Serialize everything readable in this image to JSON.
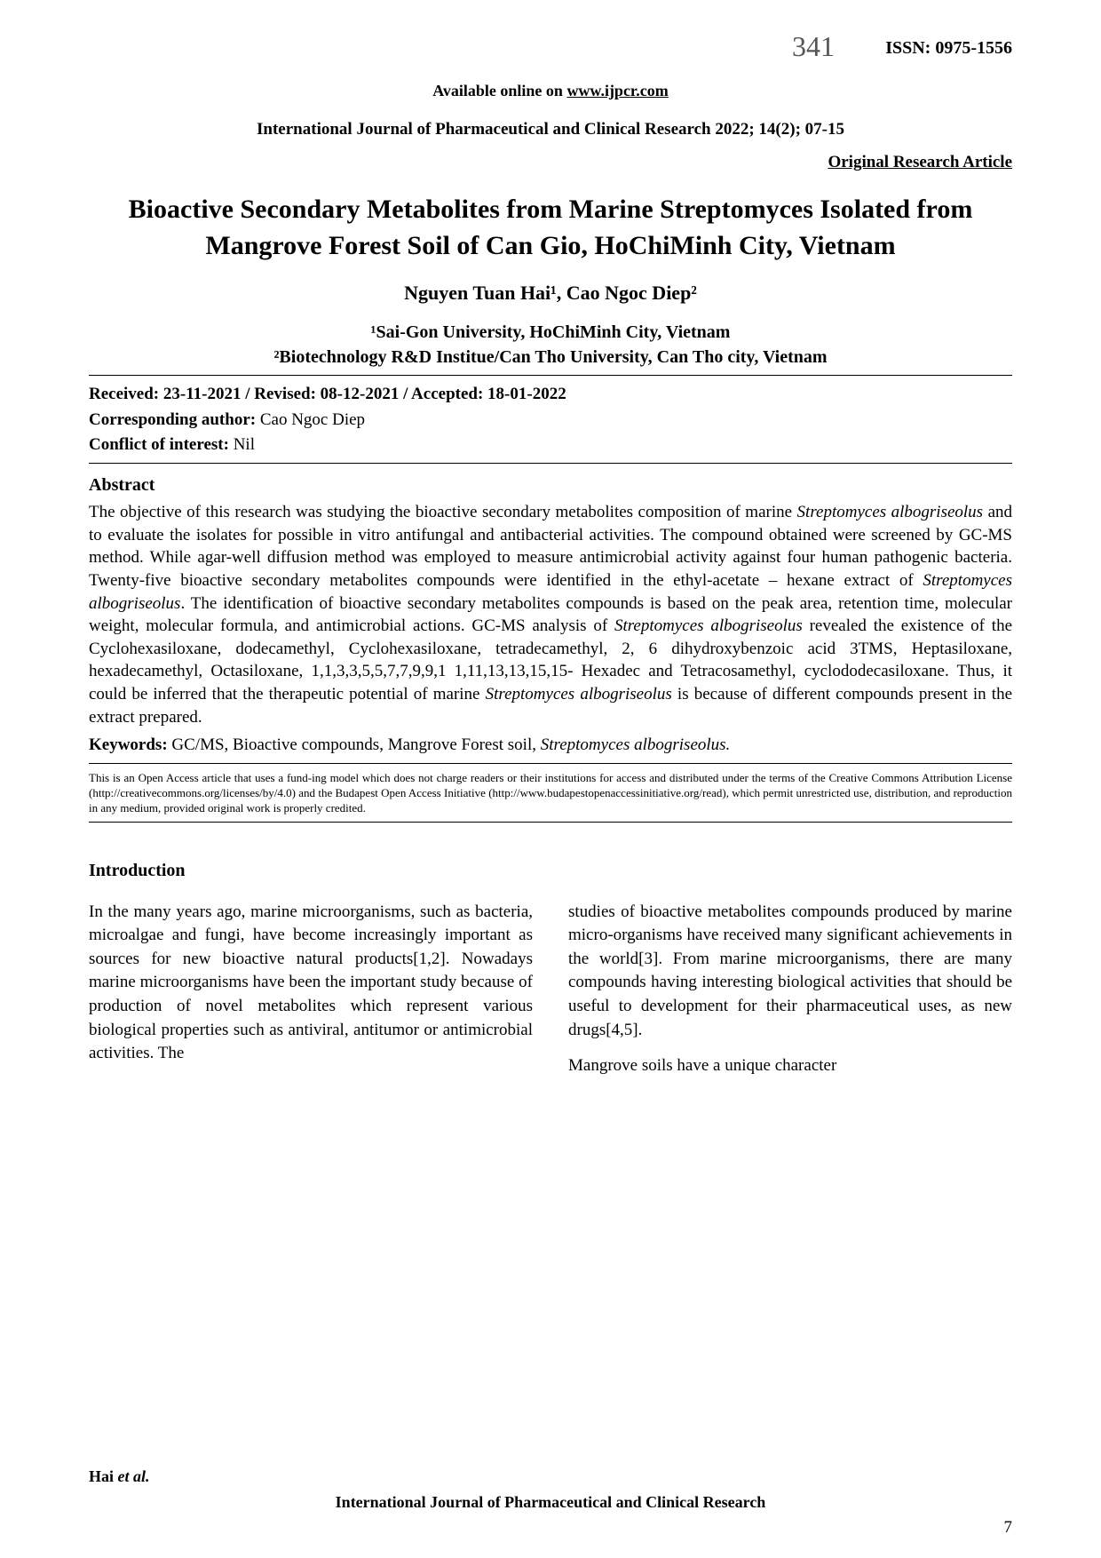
{
  "header": {
    "handwritten_number": "341",
    "issn": "ISSN: 0975-1556",
    "available_text": "Available online on ",
    "available_url": "www.ijpcr.com",
    "journal_ref": "International Journal of Pharmaceutical and Clinical Research 2022; 14(2); 07-15",
    "article_type": "Original Research Article"
  },
  "title": "Bioactive Secondary Metabolites from Marine Streptomyces Isolated from Mangrove Forest Soil of Can Gio, HoChiMinh City, Vietnam",
  "authors": "Nguyen Tuan Hai¹, Cao Ngoc Diep²",
  "affiliations": {
    "line1": "¹Sai-Gon University, HoChiMinh City, Vietnam",
    "line2": "²Biotechnology R&D Institue/Can Tho University, Can Tho city, Vietnam"
  },
  "dates": "Received: 23-11-2021 / Revised: 08-12-2021 / Accepted: 18-01-2022",
  "corresponding": {
    "label": "Corresponding author: ",
    "value": "Cao Ngoc Diep"
  },
  "conflict": {
    "label": "Conflict of interest: ",
    "value": "Nil"
  },
  "abstract": {
    "heading": "Abstract",
    "text_before_species1": "The objective of this research was studying the bioactive secondary metabolites composition of marine ",
    "species1": "Streptomyces albogriseolus",
    "text_mid1": " and to evaluate the isolates for possible in vitro antifungal and antibacterial activities. The compound obtained were screened by GC-MS method. While agar-well diffusion method was employed to measure antimicrobial activity against four human pathogenic bacteria. Twenty-five bioactive secondary metabolites compounds were identified in the ethyl-acetate – hexane extract of ",
    "species2": "Streptomyces albogriseolus",
    "text_mid2": ". The identification of bioactive secondary metabolites compounds is based on the peak area, retention time, molecular weight, molecular formula, and antimicrobial actions. GC-MS analysis of ",
    "species3": "Streptomyces albogriseolus",
    "text_mid3": " revealed the existence of the Cyclohexasiloxane, dodecamethyl, Cyclohexasiloxane, tetradecamethyl, 2, 6 dihydroxybenzoic acid 3TMS, Heptasiloxane, hexadecamethyl, Octasiloxane, 1,1,3,3,5,5,7,7,9,9,1 1,11,13,13,15,15- Hexadec and Tetracosamethyl, cyclododecasiloxane. Thus, it could be inferred that the therapeutic potential of marine ",
    "species4": "Streptomyces albogriseolus",
    "text_end": " is because of different compounds present in the extract prepared."
  },
  "keywords": {
    "label": "Keywords: ",
    "text": "GC/MS, Bioactive compounds, Mangrove Forest soil, ",
    "species": "Streptomyces albogriseolus."
  },
  "license": "This is an Open Access article that uses a fund-ing model which does not charge readers or their institutions for access and distributed under the terms of the Creative Commons Attribution License (http://creativecommons.org/licenses/by/4.0) and the Budapest Open Access Initiative (http://www.budapestopenaccessinitiative.org/read), which permit unrestricted use, distribution, and reproduction in any medium, provided original work is properly credited.",
  "introduction": {
    "heading": "Introduction",
    "col1": "In the many years ago, marine microorganisms, such as bacteria, microalgae and fungi, have become increasingly important as sources for new bioactive natural products[1,2]. Nowadays marine microorganisms have been the important study because of production of novel metabolites which represent various biological properties such as antiviral, antitumor or antimicrobial activities. The",
    "col2_p1": "studies of bioactive metabolites compounds produced by marine micro-organisms have received many significant achievements in the world[3]. From marine microorganisms, there are many compounds having interesting biological activities that should be useful to development for their pharmaceutical uses, as new drugs[4,5].",
    "col2_p2": "Mangrove soils have a unique character"
  },
  "footer": {
    "author": "Hai ",
    "etal": "et al.",
    "journal": "International Journal of Pharmaceutical and Clinical Research",
    "page": "7"
  }
}
